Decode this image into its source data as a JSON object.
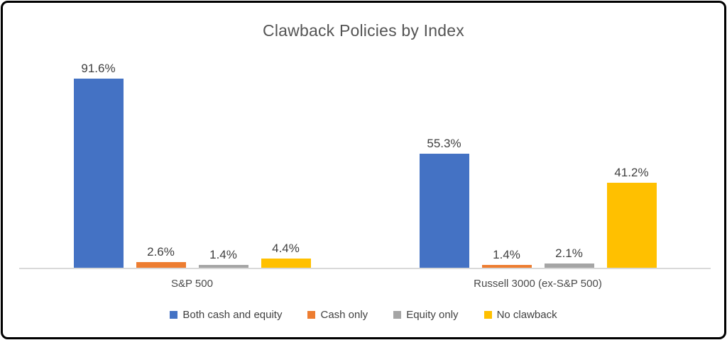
{
  "chart_data": {
    "type": "bar",
    "title": "Clawback Policies by Index",
    "categories": [
      "S&P 500",
      "Russell 3000 (ex-S&P 500)"
    ],
    "series": [
      {
        "name": "Both cash and equity",
        "color": "#4472C4",
        "values": [
          91.6,
          55.3
        ],
        "labels": [
          "91.6%",
          "55.3%"
        ]
      },
      {
        "name": "Cash only",
        "color": "#ED7D31",
        "values": [
          2.6,
          1.4
        ],
        "labels": [
          "2.6%",
          "1.4%"
        ]
      },
      {
        "name": "Equity only",
        "color": "#A5A5A5",
        "values": [
          1.4,
          2.1
        ],
        "labels": [
          "1.4%",
          "2.1%"
        ]
      },
      {
        "name": "No clawback",
        "color": "#FFC000",
        "values": [
          4.4,
          41.2
        ],
        "labels": [
          "4.4%",
          "41.2%"
        ]
      }
    ],
    "value_format": "percent",
    "ylim": [
      0,
      100
    ],
    "grid": false,
    "axis_line_color": "#D9D9D9",
    "legend_position": "bottom"
  },
  "colors": {
    "border": "#000000",
    "title_text": "#545454",
    "label_text": "#3f3f3f"
  }
}
